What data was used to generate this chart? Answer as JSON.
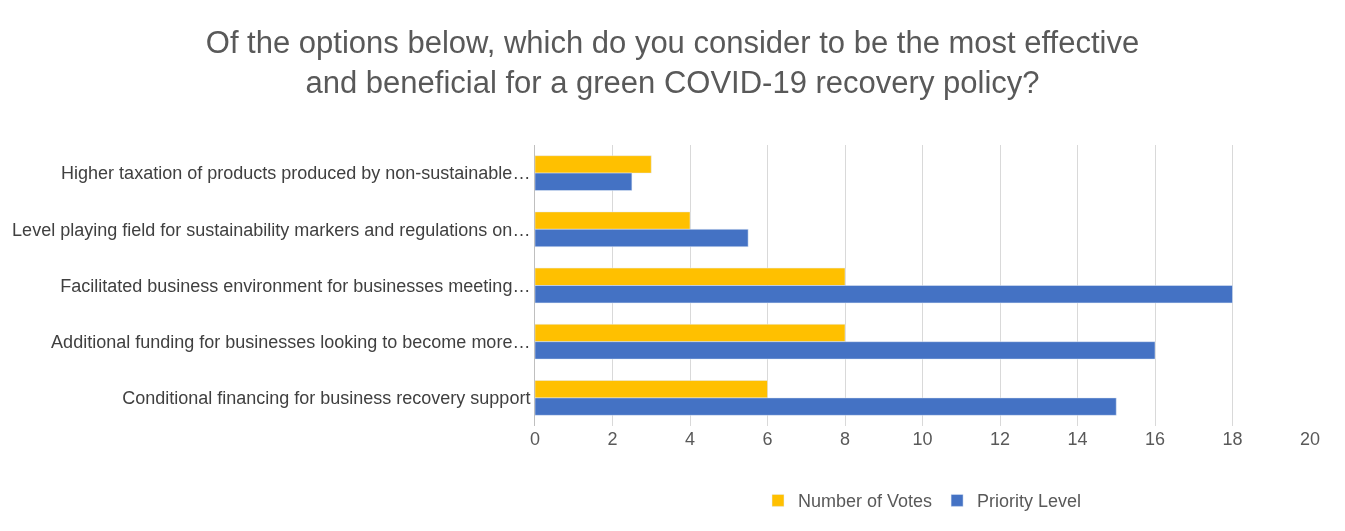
{
  "chart_data": {
    "type": "bar",
    "orientation": "horizontal",
    "title": "Of the options below, which do you consider to be the most effective and beneficial for a green COVID-19 recovery policy?",
    "categories": [
      "Higher taxation of products produced by non-sustainable…",
      "Level playing field for sustainability markers and regulations on…",
      "Facilitated business environment for businesses meeting…",
      "Additional funding for businesses looking to become more…",
      "Conditional financing for business recovery support"
    ],
    "series": [
      {
        "name": "Number of Votes",
        "color": "#ffc000",
        "values": [
          3,
          4,
          8,
          8,
          6
        ]
      },
      {
        "name": "Priority Level",
        "color": "#4472c4",
        "values": [
          2.5,
          5.5,
          18,
          16,
          15
        ]
      }
    ],
    "xlim": [
      0,
      20
    ],
    "xticks": [
      0,
      2,
      4,
      6,
      8,
      10,
      12,
      14,
      16,
      18,
      20
    ],
    "grid": "x",
    "legend": "bottom"
  }
}
